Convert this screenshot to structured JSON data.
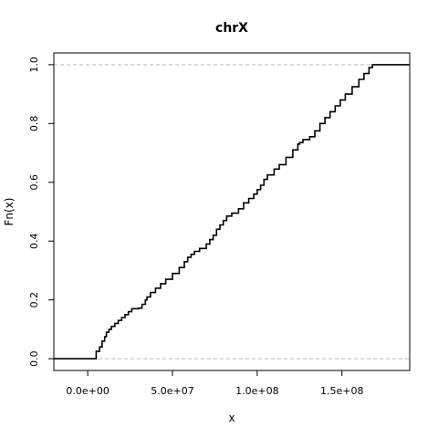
{
  "chart_data": {
    "type": "line",
    "title": "chrX",
    "xlabel": "x",
    "ylabel": "Fn(x)",
    "xlim": [
      -20000000,
      190000000
    ],
    "ylim": [
      -0.04,
      1.04
    ],
    "x_ticks": [
      0,
      50000000,
      100000000,
      150000000
    ],
    "x_tick_labels": [
      "0.0e+00",
      "5.0e+07",
      "1.0e+08",
      "1.5e+08"
    ],
    "y_ticks": [
      0.0,
      0.2,
      0.4,
      0.6,
      0.8,
      1.0
    ],
    "y_tick_labels": [
      "0.0",
      "0.2",
      "0.4",
      "0.6",
      "0.8",
      "1.0"
    ],
    "reference_lines": [
      0,
      1
    ],
    "series": [
      {
        "step": true,
        "color": "#000000",
        "x": [
          -20000000,
          2700000,
          5000000,
          7000000,
          8500000,
          10000000,
          11000000,
          12500000,
          14000000,
          16000000,
          18000000,
          20000000,
          22000000,
          24000000,
          26000000,
          27000000,
          30000000,
          32000000,
          34000000,
          35000000,
          37000000,
          40000000,
          43000000,
          46000000,
          50000000,
          54000000,
          57000000,
          59000000,
          61000000,
          63000000,
          66000000,
          70000000,
          72000000,
          74000000,
          76000000,
          78000000,
          80000000,
          82000000,
          85000000,
          89000000,
          92000000,
          95000000,
          98000000,
          100000000,
          102000000,
          104000000,
          106000000,
          110000000,
          113000000,
          117000000,
          121000000,
          124000000,
          125000000,
          127000000,
          131000000,
          134000000,
          137000000,
          140000000,
          143000000,
          146000000,
          149000000,
          152000000,
          156000000,
          160000000,
          163000000,
          166000000,
          168000000,
          170000000,
          171500000,
          190000000
        ],
        "y": [
          0.0,
          0.0,
          0.025,
          0.04,
          0.06,
          0.075,
          0.09,
          0.1,
          0.11,
          0.12,
          0.13,
          0.14,
          0.15,
          0.16,
          0.17,
          0.17,
          0.172,
          0.185,
          0.2,
          0.21,
          0.225,
          0.24,
          0.255,
          0.27,
          0.29,
          0.31,
          0.33,
          0.345,
          0.355,
          0.365,
          0.375,
          0.39,
          0.405,
          0.42,
          0.44,
          0.455,
          0.47,
          0.485,
          0.495,
          0.51,
          0.53,
          0.545,
          0.56,
          0.575,
          0.59,
          0.61,
          0.625,
          0.645,
          0.66,
          0.685,
          0.71,
          0.73,
          0.735,
          0.745,
          0.755,
          0.775,
          0.8,
          0.82,
          0.84,
          0.86,
          0.88,
          0.9,
          0.925,
          0.95,
          0.97,
          0.99,
          1.0,
          1.0,
          1.0,
          1.0
        ]
      }
    ]
  }
}
